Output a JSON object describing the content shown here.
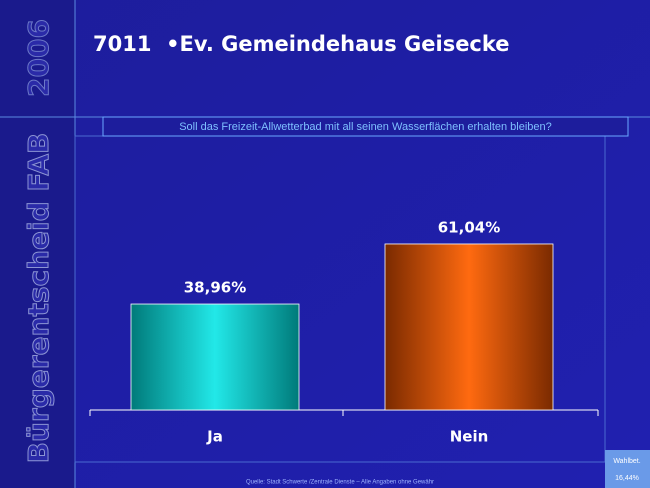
{
  "slide": {
    "year": "2006",
    "sidebar": "Bürgerentscheid FAB",
    "title": "7011  •Ev. Gemeindehaus Geisecke",
    "source": "Quelle: Stadt Schwerte /Zentrale Dienste – Alle Angaben ohne Gewähr",
    "turnout_label": "Wahlbet.",
    "turnout_value": "16,44%"
  },
  "chart_data": {
    "type": "bar",
    "title": "Soll das Freizeit-Allwetterbad mit all seinen Wasserflächen erhalten bleiben?",
    "categories": [
      "Ja",
      "Nein"
    ],
    "values": [
      38.96,
      61.04
    ],
    "value_labels": [
      "38,96%",
      "61,04%"
    ]
  }
}
